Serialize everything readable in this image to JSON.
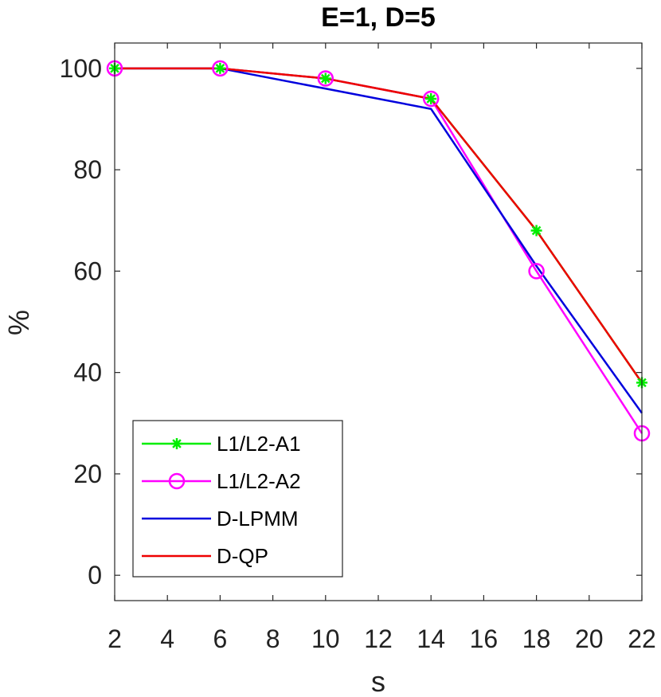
{
  "chart_data": {
    "type": "line",
    "title": "E=1, D=5",
    "xlabel": "s",
    "ylabel": "%",
    "xlim": [
      2,
      22
    ],
    "ylim": [
      -5,
      105
    ],
    "xticks": [
      2,
      4,
      6,
      8,
      10,
      12,
      14,
      16,
      18,
      20,
      22
    ],
    "yticks": [
      0,
      20,
      40,
      60,
      80,
      100
    ],
    "grid": false,
    "legend_position": "bottom-left",
    "x": [
      2,
      6,
      10,
      14,
      18,
      22
    ],
    "series": [
      {
        "name": "L1/L2-A1",
        "color": "#00ee00",
        "marker": "asterisk",
        "values": [
          100,
          100,
          98,
          94,
          68,
          38
        ]
      },
      {
        "name": "L1/L2-A2",
        "color": "#ff00ff",
        "marker": "circle",
        "values": [
          100,
          100,
          98,
          94,
          60,
          28
        ]
      },
      {
        "name": "D-LPMM",
        "color": "#0000dd",
        "marker": "none",
        "values": [
          100,
          100,
          96,
          92,
          61,
          32
        ]
      },
      {
        "name": "D-QP",
        "color": "#ee0000",
        "marker": "none",
        "values": [
          100,
          100,
          98,
          94,
          68,
          38
        ]
      }
    ]
  }
}
